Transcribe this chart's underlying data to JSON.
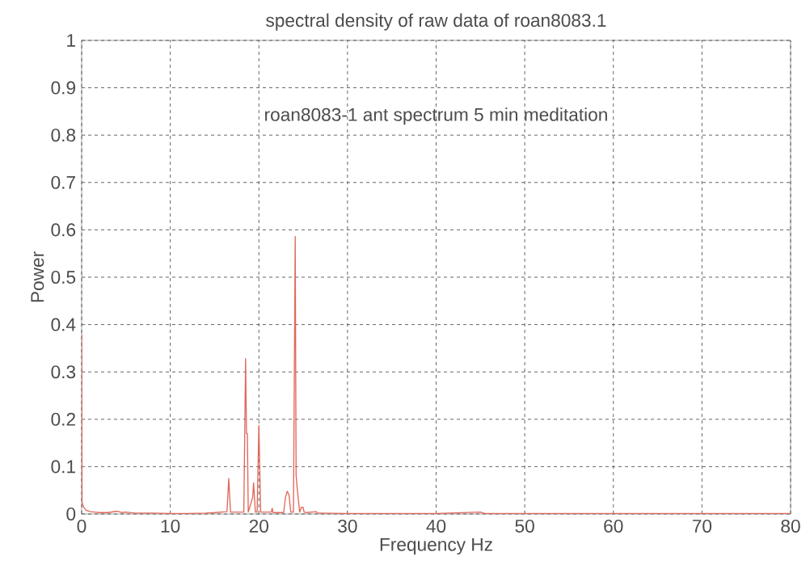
{
  "chart_data": {
    "type": "line",
    "title": "spectral density of raw data  of roan8083.1",
    "xlabel": "Frequency Hz",
    "ylabel": "Power",
    "annotations": [
      "roan8083-1 ant spectrum 5 min meditation"
    ],
    "x": [
      0,
      0.05,
      0.2,
      0.5,
      1,
      1.5,
      2,
      3,
      4,
      4.5,
      5,
      6,
      8,
      10,
      12,
      14,
      15,
      16.4,
      16.6,
      16.8,
      18.3,
      18.5,
      18.6,
      18.7,
      18.8,
      19.3,
      19.4,
      19.5,
      19.6,
      19.8,
      20.0,
      20.2,
      21.4,
      21.5,
      21.6,
      22.8,
      23.0,
      23.2,
      23.4,
      23.6,
      23.9,
      24.1,
      24.2,
      24.3,
      24.4,
      24.6,
      24.8,
      25.0,
      25.1,
      25.3,
      26.5,
      26.6,
      26.8,
      30,
      35,
      40,
      45,
      45.5,
      50,
      60,
      70,
      80
    ],
    "series": [
      {
        "color": "#e0675a",
        "values": [
          0.38,
          0.025,
          0.015,
          0.008,
          0.005,
          0.004,
          0.003,
          0.003,
          0.006,
          0.003,
          0.004,
          0.002,
          0.002,
          0.001,
          0.001,
          0.002,
          0.003,
          0.005,
          0.075,
          0.004,
          0.004,
          0.328,
          0.17,
          0.17,
          0.004,
          0.035,
          0.066,
          0.035,
          0.004,
          0.004,
          0.187,
          0.004,
          0.004,
          0.012,
          0.003,
          0.003,
          0.035,
          0.048,
          0.04,
          0.004,
          0.004,
          0.586,
          0.082,
          0.06,
          0.04,
          0.004,
          0.014,
          0.014,
          0.004,
          0.003,
          0.005,
          0.002,
          0.002,
          0.001,
          0.001,
          0.001,
          0.004,
          0.001,
          0.001,
          0.001,
          0.001,
          0.001
        ]
      }
    ],
    "xlim": [
      0,
      80
    ],
    "ylim": [
      0,
      1
    ],
    "xticks": [
      0,
      10,
      20,
      30,
      40,
      50,
      60,
      70,
      80
    ],
    "yticks": [
      0,
      0.1,
      0.2,
      0.3,
      0.4,
      0.5,
      0.6,
      0.7,
      0.8,
      0.9,
      1
    ],
    "grid": true,
    "marker": "none",
    "line_style": "solid"
  }
}
